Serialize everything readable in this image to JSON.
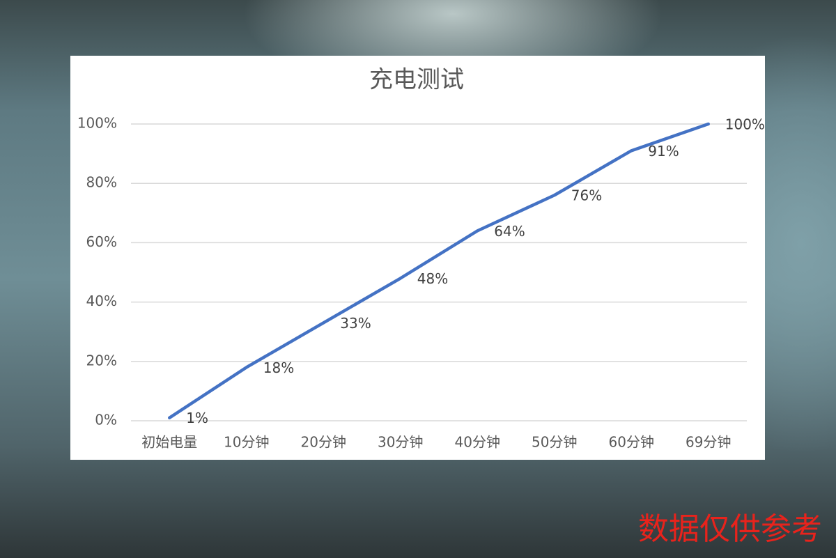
{
  "chart_data": {
    "type": "line",
    "title": "充电测试",
    "categories": [
      "初始电量",
      "10分钟",
      "20分钟",
      "30分钟",
      "40分钟",
      "50分钟",
      "60分钟",
      "69分钟"
    ],
    "series": [
      {
        "color": "#4472c4",
        "values": [
          1,
          18,
          33,
          48,
          64,
          76,
          91,
          100
        ],
        "value_labels": [
          "1%",
          "18%",
          "33%",
          "48%",
          "64%",
          "76%",
          "91%",
          "100%"
        ]
      }
    ],
    "ylim": [
      0,
      100
    ],
    "yticks": [
      {
        "value": 0,
        "label": "0%"
      },
      {
        "value": 20,
        "label": "20%"
      },
      {
        "value": 40,
        "label": "40%"
      },
      {
        "value": 60,
        "label": "60%"
      },
      {
        "value": 80,
        "label": "80%"
      },
      {
        "value": 100,
        "label": "100%"
      }
    ],
    "grid": true
  },
  "watermark": "数据仅供参考"
}
